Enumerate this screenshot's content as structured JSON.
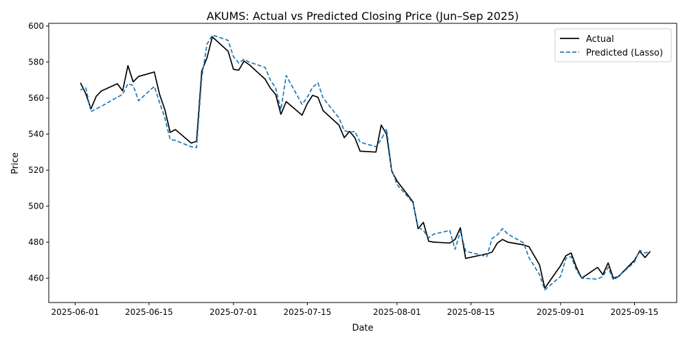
{
  "chart_data": {
    "type": "line",
    "title": "AKUMS: Actual vs Predicted Closing Price (Jun–Sep 2025)",
    "xlabel": "Date",
    "ylabel": "Price",
    "xlim": [
      "2025-05-27",
      "2025-09-23"
    ],
    "ylim": [
      446.5,
      601.5
    ],
    "x_ticks": [
      "2025-06-01",
      "2025-06-15",
      "2025-07-01",
      "2025-07-15",
      "2025-08-01",
      "2025-08-15",
      "2025-09-01",
      "2025-09-15"
    ],
    "y_ticks": [
      460,
      480,
      500,
      520,
      540,
      560,
      580,
      600
    ],
    "grid": false,
    "legend_position": "top-right",
    "series": [
      {
        "name": "Actual",
        "color": "#000000",
        "style": "solid",
        "x": [
          "2025-06-02",
          "2025-06-03",
          "2025-06-04",
          "2025-06-05",
          "2025-06-06",
          "2025-06-09",
          "2025-06-10",
          "2025-06-11",
          "2025-06-12",
          "2025-06-13",
          "2025-06-16",
          "2025-06-17",
          "2025-06-18",
          "2025-06-19",
          "2025-06-20",
          "2025-06-23",
          "2025-06-24",
          "2025-06-25",
          "2025-06-26",
          "2025-06-27",
          "2025-06-30",
          "2025-07-01",
          "2025-07-02",
          "2025-07-03",
          "2025-07-04",
          "2025-07-07",
          "2025-07-08",
          "2025-07-09",
          "2025-07-10",
          "2025-07-11",
          "2025-07-14",
          "2025-07-15",
          "2025-07-16",
          "2025-07-17",
          "2025-07-18",
          "2025-07-21",
          "2025-07-22",
          "2025-07-23",
          "2025-07-24",
          "2025-07-25",
          "2025-07-28",
          "2025-07-29",
          "2025-07-30",
          "2025-07-31",
          "2025-08-01",
          "2025-08-04",
          "2025-08-05",
          "2025-08-06",
          "2025-08-07",
          "2025-08-08",
          "2025-08-11",
          "2025-08-12",
          "2025-08-13",
          "2025-08-14",
          "2025-08-18",
          "2025-08-19",
          "2025-08-20",
          "2025-08-21",
          "2025-08-22",
          "2025-08-25",
          "2025-08-26",
          "2025-08-28",
          "2025-08-29",
          "2025-09-01",
          "2025-09-02",
          "2025-09-03",
          "2025-09-04",
          "2025-09-05",
          "2025-09-08",
          "2025-09-09",
          "2025-09-10",
          "2025-09-11",
          "2025-09-12",
          "2025-09-15",
          "2025-09-16",
          "2025-09-17",
          "2025-09-18"
        ],
        "values": [
          568.5,
          562.5,
          554.0,
          561.0,
          564.0,
          568.0,
          564.0,
          578.0,
          569.0,
          572.0,
          574.5,
          562.0,
          553.5,
          541.0,
          542.5,
          535.0,
          536.0,
          575.0,
          582.5,
          594.0,
          586.0,
          576.0,
          575.5,
          580.5,
          578.5,
          570.5,
          565.5,
          562.0,
          551.0,
          558.0,
          550.5,
          557.0,
          561.5,
          560.5,
          553.0,
          545.0,
          538.0,
          541.5,
          538.0,
          530.5,
          530.0,
          545.0,
          540.0,
          519.5,
          514.0,
          502.5,
          487.5,
          491.0,
          480.5,
          480.0,
          479.5,
          481.5,
          488.0,
          471.0,
          473.5,
          474.5,
          479.5,
          481.5,
          480.0,
          478.5,
          477.5,
          467.5,
          454.5,
          467.0,
          472.5,
          474.0,
          466.0,
          460.0,
          466.0,
          462.0,
          468.5,
          460.0,
          461.0,
          470.0,
          475.0,
          471.5,
          475.0
        ]
      },
      {
        "name": "Predicted (Lasso)",
        "color": "#1f77b4",
        "style": "dashed",
        "x": [
          "2025-06-02",
          "2025-06-03",
          "2025-06-04",
          "2025-06-05",
          "2025-06-06",
          "2025-06-09",
          "2025-06-10",
          "2025-06-11",
          "2025-06-12",
          "2025-06-13",
          "2025-06-16",
          "2025-06-17",
          "2025-06-18",
          "2025-06-19",
          "2025-06-20",
          "2025-06-23",
          "2025-06-24",
          "2025-06-25",
          "2025-06-26",
          "2025-06-27",
          "2025-06-30",
          "2025-07-01",
          "2025-07-02",
          "2025-07-03",
          "2025-07-04",
          "2025-07-07",
          "2025-07-08",
          "2025-07-09",
          "2025-07-10",
          "2025-07-11",
          "2025-07-14",
          "2025-07-15",
          "2025-07-16",
          "2025-07-17",
          "2025-07-18",
          "2025-07-21",
          "2025-07-22",
          "2025-07-23",
          "2025-07-24",
          "2025-07-25",
          "2025-07-28",
          "2025-07-29",
          "2025-07-30",
          "2025-07-31",
          "2025-08-01",
          "2025-08-04",
          "2025-08-05",
          "2025-08-06",
          "2025-08-07",
          "2025-08-08",
          "2025-08-11",
          "2025-08-12",
          "2025-08-13",
          "2025-08-14",
          "2025-08-18",
          "2025-08-19",
          "2025-08-20",
          "2025-08-21",
          "2025-08-22",
          "2025-08-25",
          "2025-08-26",
          "2025-08-28",
          "2025-08-29",
          "2025-09-01",
          "2025-09-02",
          "2025-09-03",
          "2025-09-04",
          "2025-09-05",
          "2025-09-08",
          "2025-09-09",
          "2025-09-10",
          "2025-09-11",
          "2025-09-12",
          "2025-09-15",
          "2025-09-16",
          "2025-09-17",
          "2025-09-18"
        ],
        "values": [
          564.5,
          566.0,
          552.5,
          554.0,
          555.5,
          560.5,
          562.0,
          568.0,
          567.0,
          558.5,
          566.5,
          557.5,
          549.0,
          537.0,
          536.5,
          533.0,
          532.5,
          571.5,
          590.0,
          595.0,
          592.0,
          583.0,
          579.5,
          581.5,
          580.0,
          577.0,
          570.0,
          565.5,
          553.5,
          572.5,
          556.5,
          560.5,
          566.0,
          568.5,
          560.0,
          549.0,
          542.0,
          541.0,
          541.5,
          535.5,
          533.0,
          537.0,
          543.0,
          520.0,
          512.0,
          502.0,
          488.5,
          486.5,
          482.5,
          484.5,
          486.5,
          476.0,
          486.0,
          475.0,
          472.0,
          482.0,
          484.0,
          487.5,
          484.5,
          479.5,
          471.5,
          462.0,
          453.5,
          461.0,
          471.0,
          472.0,
          464.5,
          460.0,
          459.5,
          461.0,
          466.0,
          459.0,
          461.0,
          469.0,
          475.5,
          474.0,
          475.0
        ]
      }
    ]
  }
}
